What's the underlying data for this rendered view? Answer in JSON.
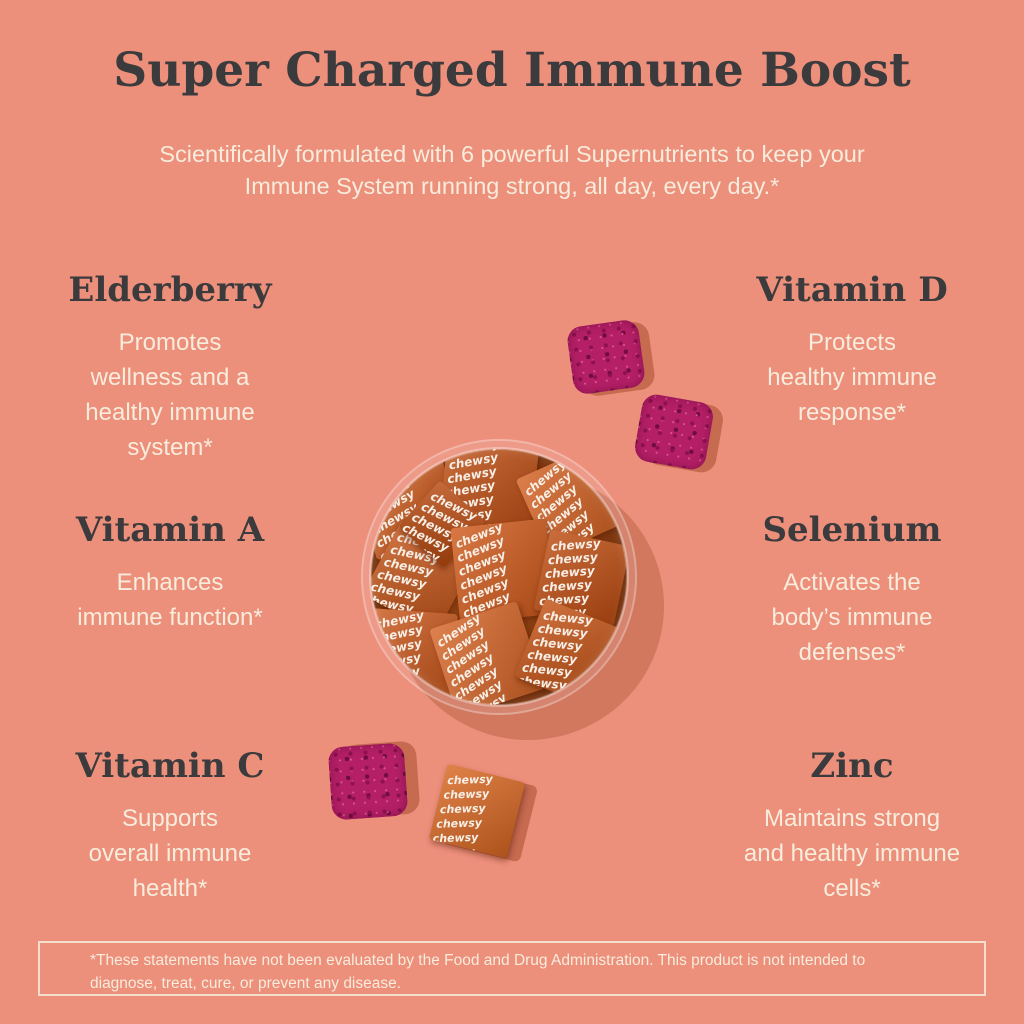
{
  "header": {
    "title": "Super Charged Immune Boost",
    "subtitle": "Scientifically formulated with 6 powerful Supernutrients to keep your\nImmune System running strong, all day, every day.*"
  },
  "nutrients": [
    {
      "name": "Elderberry",
      "description": "Promotes\nwellness and a\nhealthy immune\nsystem*"
    },
    {
      "name": "Vitamin D",
      "description": "Protects\nhealthy immune\nresponse*"
    },
    {
      "name": "Vitamin A",
      "description": "Enhances\nimmune function*"
    },
    {
      "name": "Selenium",
      "description": "Activates the\nbody’s immune\ndefenses*"
    },
    {
      "name": "Vitamin C",
      "description": "Supports\noverall immune\nhealth*"
    },
    {
      "name": "Zinc",
      "description": "Maintains strong\nand healthy immune\ncells*"
    }
  ],
  "decor": {
    "wrapper_word": "chewsy"
  },
  "footer": {
    "disclaimer": "*These statements have not been evaluated by the Food and Drug Administration. This product is not intended to\ndiagnose, treat, cure, or prevent any disease."
  },
  "colors": {
    "background": "#ec8f7b",
    "heading_text": "#3b3a3c",
    "body_text": "#f8ecdc",
    "chew_wrapper_orange": "#cd5a1d",
    "berry_gummy_magenta": "#b41f66",
    "shadow_salmon": "#c66a50"
  }
}
